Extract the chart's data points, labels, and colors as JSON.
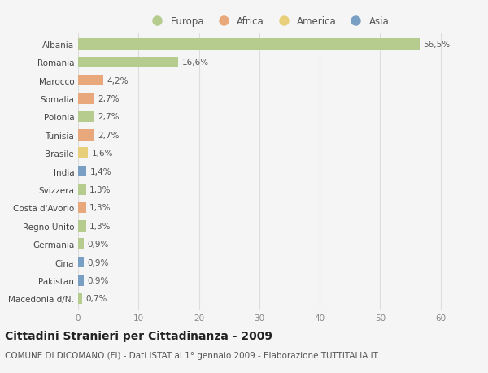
{
  "categories": [
    "Albania",
    "Romania",
    "Marocco",
    "Somalia",
    "Polonia",
    "Tunisia",
    "Brasile",
    "India",
    "Svizzera",
    "Costa d'Avorio",
    "Regno Unito",
    "Germania",
    "Cina",
    "Pakistan",
    "Macedonia d/N."
  ],
  "values": [
    56.5,
    16.6,
    4.2,
    2.7,
    2.7,
    2.7,
    1.6,
    1.4,
    1.3,
    1.3,
    1.3,
    0.9,
    0.9,
    0.9,
    0.7
  ],
  "labels": [
    "56,5%",
    "16,6%",
    "4,2%",
    "2,7%",
    "2,7%",
    "2,7%",
    "1,6%",
    "1,4%",
    "1,3%",
    "1,3%",
    "1,3%",
    "0,9%",
    "0,9%",
    "0,9%",
    "0,7%"
  ],
  "continents": [
    "Europa",
    "Europa",
    "Africa",
    "Africa",
    "Europa",
    "Africa",
    "America",
    "Asia",
    "Europa",
    "Africa",
    "Europa",
    "Europa",
    "Asia",
    "Asia",
    "Europa"
  ],
  "continent_colors": {
    "Europa": "#b5cc8e",
    "Africa": "#e8a87c",
    "America": "#e8d07a",
    "Asia": "#7a9fc4"
  },
  "legend_order": [
    "Europa",
    "Africa",
    "America",
    "Asia"
  ],
  "title": "Cittadini Stranieri per Cittadinanza - 2009",
  "subtitle": "COMUNE DI DICOMANO (FI) - Dati ISTAT al 1° gennaio 2009 - Elaborazione TUTTITALIA.IT",
  "xlim": [
    0,
    63
  ],
  "xticks": [
    0,
    10,
    20,
    30,
    40,
    50,
    60
  ],
  "background_color": "#f5f5f5",
  "grid_color": "#dddddd",
  "title_fontsize": 10,
  "subtitle_fontsize": 7.5,
  "label_fontsize": 7.5,
  "tick_fontsize": 7.5,
  "legend_fontsize": 8.5
}
